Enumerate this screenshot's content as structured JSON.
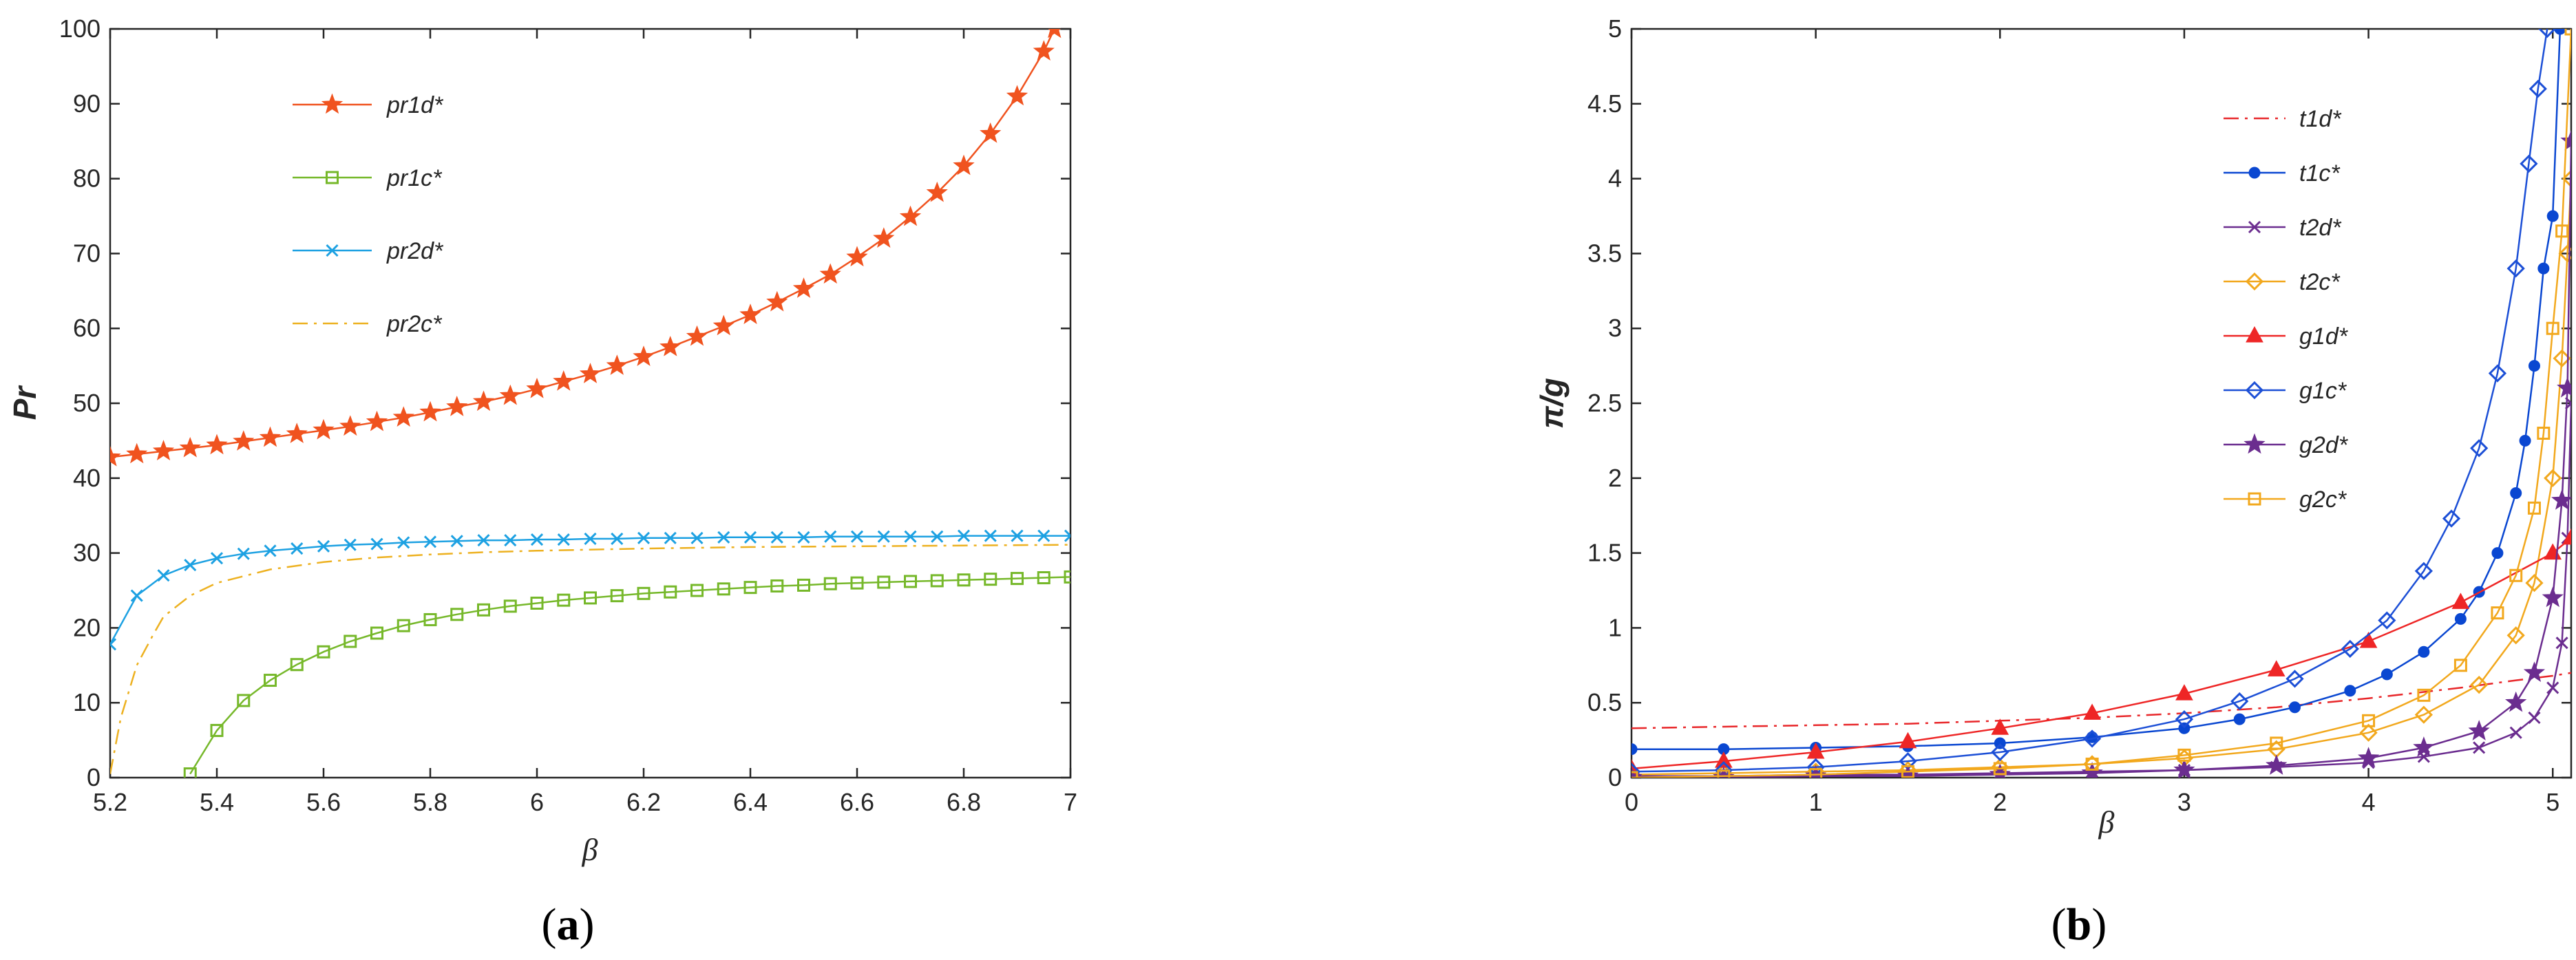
{
  "chart_data": [
    {
      "type": "line",
      "panel_label": "(a)",
      "panel_letter": "a",
      "xlabel": "β",
      "ylabel": "Pr",
      "xlim": [
        5.2,
        7
      ],
      "ylim": [
        0,
        100
      ],
      "xticks": [
        "5.2",
        "5.4",
        "5.6",
        "5.8",
        "6",
        "6.2",
        "6.4",
        "6.6",
        "6.8",
        "7"
      ],
      "yticks": [
        "0",
        "10",
        "20",
        "30",
        "40",
        "50",
        "60",
        "70",
        "80",
        "90",
        "100"
      ],
      "grid": false,
      "legend_position": "top-left",
      "series": [
        {
          "name": "pr1d*",
          "color": "#f0531f",
          "marker": "star",
          "dash": "solid",
          "x": [
            5.2,
            5.25,
            5.3,
            5.35,
            5.4,
            5.45,
            5.5,
            5.55,
            5.6,
            5.65,
            5.7,
            5.75,
            5.8,
            5.85,
            5.9,
            5.95,
            6.0,
            6.05,
            6.1,
            6.15,
            6.2,
            6.25,
            6.3,
            6.35,
            6.4,
            6.45,
            6.5,
            6.55,
            6.6,
            6.65,
            6.7,
            6.75,
            6.8,
            6.85,
            6.9,
            6.95,
            6.97
          ],
          "y": [
            42.8,
            43.2,
            43.6,
            44.0,
            44.4,
            44.9,
            45.4,
            45.9,
            46.4,
            46.9,
            47.5,
            48.1,
            48.8,
            49.5,
            50.2,
            51.0,
            51.9,
            52.9,
            53.9,
            55.0,
            56.2,
            57.5,
            58.9,
            60.3,
            61.8,
            63.5,
            65.3,
            67.2,
            69.5,
            72.0,
            74.9,
            78.1,
            81.7,
            86.0,
            91.0,
            97.0,
            100.0
          ]
        },
        {
          "name": "pr1c*",
          "color": "#76b82a",
          "marker": "square",
          "dash": "solid",
          "x": [
            5.35,
            5.4,
            5.45,
            5.5,
            5.55,
            5.6,
            5.65,
            5.7,
            5.75,
            5.8,
            5.85,
            5.9,
            5.95,
            6.0,
            6.05,
            6.1,
            6.15,
            6.2,
            6.25,
            6.3,
            6.35,
            6.4,
            6.45,
            6.5,
            6.55,
            6.6,
            6.65,
            6.7,
            6.75,
            6.8,
            6.85,
            6.9,
            6.95,
            7.0
          ],
          "y": [
            0.5,
            6.3,
            10.3,
            13.0,
            15.1,
            16.8,
            18.2,
            19.3,
            20.3,
            21.1,
            21.8,
            22.4,
            22.9,
            23.3,
            23.7,
            24.0,
            24.3,
            24.6,
            24.8,
            25.0,
            25.2,
            25.4,
            25.6,
            25.7,
            25.9,
            26.0,
            26.1,
            26.2,
            26.3,
            26.4,
            26.5,
            26.6,
            26.7,
            26.8
          ]
        },
        {
          "name": "pr2d*",
          "color": "#1da1e2",
          "marker": "x",
          "dash": "solid",
          "x": [
            5.2,
            5.25,
            5.3,
            5.35,
            5.4,
            5.45,
            5.5,
            5.55,
            5.6,
            5.65,
            5.7,
            5.75,
            5.8,
            5.85,
            5.9,
            5.95,
            6.0,
            6.05,
            6.1,
            6.15,
            6.2,
            6.25,
            6.3,
            6.35,
            6.4,
            6.45,
            6.5,
            6.55,
            6.6,
            6.65,
            6.7,
            6.75,
            6.8,
            6.85,
            6.9,
            6.95,
            7.0
          ],
          "y": [
            17.8,
            24.3,
            27.0,
            28.4,
            29.3,
            29.9,
            30.3,
            30.6,
            30.9,
            31.1,
            31.2,
            31.4,
            31.5,
            31.6,
            31.7,
            31.7,
            31.8,
            31.8,
            31.9,
            31.9,
            32.0,
            32.0,
            32.0,
            32.1,
            32.1,
            32.1,
            32.1,
            32.2,
            32.2,
            32.2,
            32.2,
            32.2,
            32.3,
            32.3,
            32.3,
            32.3,
            32.3
          ]
        },
        {
          "name": "pr2c*",
          "color": "#edb120",
          "marker": "none",
          "dash": "dashdot",
          "x": [
            5.2,
            5.22,
            5.25,
            5.28,
            5.3,
            5.35,
            5.4,
            5.5,
            5.6,
            5.7,
            5.8,
            5.9,
            6.0,
            6.2,
            6.4,
            6.6,
            6.8,
            7.0
          ],
          "y": [
            0.5,
            8.0,
            15.0,
            19.0,
            21.5,
            24.3,
            26.0,
            27.8,
            28.8,
            29.4,
            29.8,
            30.1,
            30.3,
            30.6,
            30.8,
            30.9,
            31.0,
            31.1
          ]
        }
      ]
    },
    {
      "type": "line",
      "panel_label": "(b)",
      "panel_letter": "b",
      "xlabel": "β",
      "ylabel": "π/g",
      "xlim": [
        0,
        5.1
      ],
      "ylim": [
        0,
        5
      ],
      "xticks": [
        "0",
        "1",
        "2",
        "3",
        "4",
        "5"
      ],
      "yticks": [
        "0",
        "0.5",
        "1",
        "1.5",
        "2",
        "2.5",
        "3",
        "3.5",
        "4",
        "4.5",
        "5"
      ],
      "grid": false,
      "legend_position": "top-right",
      "series": [
        {
          "name": "t1d*",
          "color": "#e8272a",
          "marker": "none",
          "dash": "dashdot",
          "x": [
            0,
            0.5,
            1,
            1.5,
            2,
            2.5,
            3,
            3.5,
            4,
            4.5,
            4.8,
            5.0,
            5.1
          ],
          "y": [
            0.33,
            0.34,
            0.35,
            0.36,
            0.38,
            0.4,
            0.43,
            0.47,
            0.53,
            0.6,
            0.65,
            0.68,
            0.7
          ]
        },
        {
          "name": "t1c*",
          "color": "#0a47d1",
          "marker": "circle",
          "dash": "solid",
          "x": [
            0,
            0.5,
            1,
            1.5,
            2,
            2.5,
            3,
            3.3,
            3.6,
            3.9,
            4.1,
            4.3,
            4.5,
            4.6,
            4.7,
            4.8,
            4.85,
            4.9,
            4.95,
            5.0,
            5.04
          ],
          "y": [
            0.19,
            0.19,
            0.2,
            0.21,
            0.23,
            0.27,
            0.33,
            0.39,
            0.47,
            0.58,
            0.69,
            0.84,
            1.06,
            1.24,
            1.5,
            1.9,
            2.25,
            2.75,
            3.4,
            3.75,
            5.0
          ]
        },
        {
          "name": "t2d*",
          "color": "#6b2d8f",
          "marker": "x",
          "dash": "solid",
          "x": [
            0,
            0.5,
            1,
            1.5,
            2,
            2.5,
            3,
            3.5,
            4,
            4.3,
            4.6,
            4.8,
            4.9,
            5.0,
            5.05,
            5.08,
            5.1
          ],
          "y": [
            0.01,
            0.01,
            0.02,
            0.02,
            0.03,
            0.04,
            0.05,
            0.07,
            0.1,
            0.14,
            0.2,
            0.3,
            0.4,
            0.6,
            0.9,
            1.6,
            2.5
          ]
        },
        {
          "name": "t2c*",
          "color": "#f2a81d",
          "marker": "diamond",
          "dash": "solid",
          "x": [
            0,
            0.5,
            1,
            1.5,
            2,
            2.5,
            3,
            3.5,
            4,
            4.3,
            4.6,
            4.8,
            4.9,
            5.0,
            5.05,
            5.08,
            5.1
          ],
          "y": [
            0.02,
            0.03,
            0.04,
            0.05,
            0.07,
            0.09,
            0.13,
            0.19,
            0.3,
            0.42,
            0.62,
            0.95,
            1.3,
            2.0,
            2.8,
            3.5,
            4.0
          ]
        },
        {
          "name": "g1d*",
          "color": "#ee2626",
          "marker": "triangle",
          "dash": "solid",
          "x": [
            0,
            0.5,
            1,
            1.5,
            2,
            2.5,
            3,
            3.5,
            4,
            4.5,
            5.0,
            5.1
          ],
          "y": [
            0.06,
            0.11,
            0.17,
            0.24,
            0.33,
            0.43,
            0.56,
            0.72,
            0.91,
            1.17,
            1.5,
            1.6
          ]
        },
        {
          "name": "g1c*",
          "color": "#1c4fd6",
          "marker": "diamond",
          "dash": "solid",
          "x": [
            0,
            0.5,
            1,
            1.5,
            2,
            2.5,
            3,
            3.3,
            3.6,
            3.9,
            4.1,
            4.3,
            4.45,
            4.6,
            4.7,
            4.8,
            4.87,
            4.92,
            4.97
          ],
          "y": [
            0.04,
            0.05,
            0.07,
            0.11,
            0.17,
            0.26,
            0.39,
            0.51,
            0.66,
            0.86,
            1.05,
            1.38,
            1.73,
            2.2,
            2.7,
            3.4,
            4.1,
            4.6,
            5.0
          ]
        },
        {
          "name": "g2d*",
          "color": "#6b2d8f",
          "marker": "star",
          "dash": "solid",
          "x": [
            0,
            0.5,
            1,
            1.5,
            2,
            2.5,
            3,
            3.5,
            4,
            4.3,
            4.6,
            4.8,
            4.9,
            5.0,
            5.05,
            5.08,
            5.1
          ],
          "y": [
            0.0,
            0.0,
            0.01,
            0.01,
            0.02,
            0.03,
            0.05,
            0.08,
            0.13,
            0.2,
            0.31,
            0.5,
            0.7,
            1.2,
            1.85,
            2.6,
            4.25
          ]
        },
        {
          "name": "g2c*",
          "color": "#f2a81d",
          "marker": "square",
          "dash": "solid",
          "x": [
            0,
            0.5,
            1,
            1.5,
            2,
            2.5,
            3,
            3.5,
            4,
            4.3,
            4.5,
            4.7,
            4.8,
            4.9,
            4.95,
            5.0,
            5.05,
            5.1
          ],
          "y": [
            0.0,
            0.01,
            0.02,
            0.04,
            0.06,
            0.09,
            0.15,
            0.23,
            0.38,
            0.55,
            0.75,
            1.1,
            1.35,
            1.8,
            2.3,
            3.0,
            3.65,
            5.0
          ]
        }
      ]
    }
  ]
}
